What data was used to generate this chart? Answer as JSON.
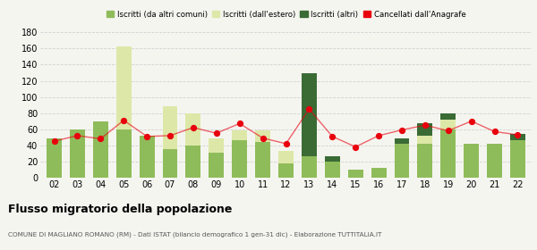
{
  "years": [
    "02",
    "03",
    "04",
    "05",
    "06",
    "07",
    "08",
    "09",
    "10",
    "11",
    "12",
    "13",
    "14",
    "15",
    "16",
    "17",
    "18",
    "19",
    "20",
    "21",
    "22"
  ],
  "iscritti_altri_comuni": [
    48,
    60,
    70,
    60,
    52,
    35,
    40,
    31,
    46,
    44,
    18,
    26,
    20,
    10,
    12,
    42,
    42,
    60,
    42,
    42,
    46
  ],
  "iscritti_estero": [
    0,
    0,
    0,
    103,
    0,
    53,
    40,
    17,
    12,
    15,
    15,
    0,
    0,
    0,
    0,
    0,
    10,
    12,
    0,
    0,
    0
  ],
  "iscritti_altri": [
    0,
    0,
    0,
    0,
    0,
    0,
    0,
    0,
    0,
    0,
    0,
    104,
    6,
    0,
    0,
    6,
    15,
    8,
    0,
    0,
    8
  ],
  "cancellati": [
    45,
    52,
    48,
    71,
    51,
    52,
    62,
    55,
    67,
    49,
    42,
    85,
    51,
    38,
    52,
    59,
    65,
    58,
    70,
    57,
    53
  ],
  "color_altri_comuni": "#8fbc5a",
  "color_estero": "#dde8a8",
  "color_altri": "#3a6b35",
  "color_cancellati": "#e8000d",
  "bg_color": "#f5f5f0",
  "grid_color": "#d0d0d0",
  "title": "Flusso migratorio della popolazione",
  "subtitle": "COMUNE DI MAGLIANO ROMANO (RM) - Dati ISTAT (bilancio demografico 1 gen-31 dic) - Elaborazione TUTTITALIA.IT",
  "legend_labels": [
    "Iscritti (da altri comuni)",
    "Iscritti (dall'estero)",
    "Iscritti (altri)",
    "Cancellati dall'Anagrafe"
  ],
  "ylim": [
    0,
    180
  ],
  "yticks": [
    0,
    20,
    40,
    60,
    80,
    100,
    120,
    140,
    160,
    180
  ]
}
